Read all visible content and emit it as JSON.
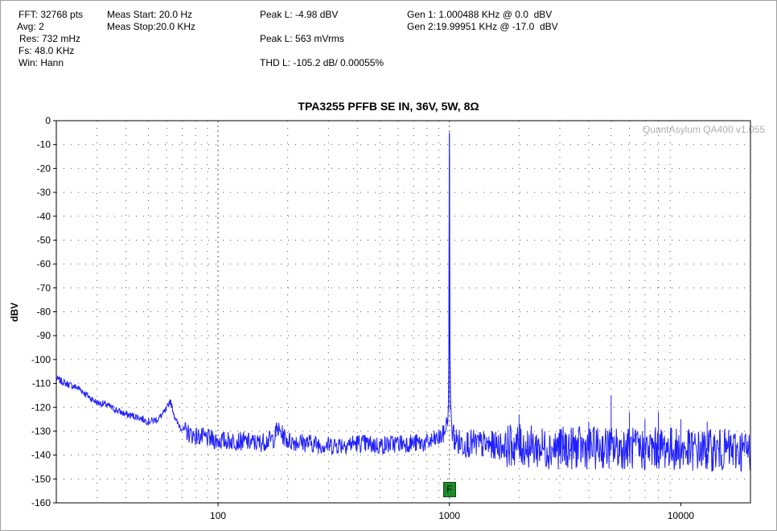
{
  "header": {
    "fft": "FFT: 32768 pts",
    "avg": "Avg: 2",
    "res": "Res: 732 mHz",
    "fs": "Fs: 48.0 KHz",
    "win": "Win: Hann",
    "meas_start": "Meas Start: 20.0 Hz",
    "meas_stop": "Meas Stop:20.0 KHz",
    "peak_l_dbv": "Peak L: -4.98 dBV",
    "peak_l_rms": "Peak L: 563 mVrms",
    "thd_l": "THD L: -105.2 dB/ 0.00055%",
    "gen1": "Gen 1: 1.000488 KHz @ 0.0  dBV",
    "gen2": "Gen 2:19.99951 KHz @ -17.0  dBV"
  },
  "watermark": "QuantAsylum QA400 v1.055",
  "marker": {
    "label": "F",
    "freq": 1000,
    "color": "#1d8a2a"
  },
  "chart_data": {
    "type": "line",
    "title": "TPA3255 PFFB SE IN, 36V, 5W, 8Ω",
    "xlabel": "",
    "ylabel": "dBV",
    "xscale": "log",
    "xlim": [
      20,
      20000
    ],
    "ylim": [
      -160,
      0
    ],
    "xticks": [
      100,
      1000,
      10000
    ],
    "xtick_labels": [
      "100",
      "1000",
      "10000"
    ],
    "yticks": [
      0,
      -10,
      -20,
      -30,
      -40,
      -50,
      -60,
      -70,
      -80,
      -90,
      -100,
      -110,
      -120,
      -130,
      -140,
      -150,
      -160
    ],
    "ytick_labels": [
      "0",
      "-10",
      "-20",
      "-30",
      "-40",
      "-50",
      "-60",
      "-70",
      "-80",
      "-90",
      "-100",
      "-110",
      "-120",
      "-130",
      "-140",
      "-150",
      "-160"
    ],
    "grid": true,
    "series": [
      {
        "color": "#2020ff",
        "x": [
          20,
          22,
          25,
          28,
          30,
          33,
          36,
          40,
          45,
          50,
          55,
          60,
          62,
          66,
          70,
          75,
          80,
          90,
          100,
          120,
          150,
          175,
          180,
          200,
          250,
          300,
          400,
          500,
          600,
          700,
          800,
          900,
          950,
          980,
          990,
          995,
          1000,
          1005,
          1010,
          1020,
          1050,
          1100,
          1200,
          1500,
          2000,
          2500,
          3000,
          4000,
          5000,
          6000,
          7000,
          8000,
          9000,
          10000,
          12000,
          14000,
          16000,
          18000,
          20000
        ],
        "y": [
          -108,
          -110,
          -112,
          -116,
          -118,
          -119,
          -121,
          -123,
          -124,
          -126,
          -125,
          -121,
          -117,
          -126,
          -129,
          -131,
          -132,
          -133,
          -134,
          -134,
          -135,
          -133,
          -129,
          -134,
          -135,
          -136,
          -135,
          -136,
          -135,
          -135,
          -135,
          -133,
          -131,
          -125,
          -121,
          -100,
          -5,
          -100,
          -121,
          -128,
          -133,
          -135,
          -135,
          -136,
          -136,
          -137,
          -137,
          -137,
          -137,
          -137,
          -138,
          -137,
          -137,
          -138,
          -138,
          -138,
          -138,
          -138,
          -138
        ]
      }
    ],
    "spurs": [
      {
        "x": 2000,
        "y": -123
      },
      {
        "x": 3000,
        "y": -129
      },
      {
        "x": 4000,
        "y": -126
      },
      {
        "x": 5000,
        "y": -115
      },
      {
        "x": 6000,
        "y": -122
      },
      {
        "x": 7000,
        "y": -125
      },
      {
        "x": 8000,
        "y": -122
      },
      {
        "x": 10000,
        "y": -125
      },
      {
        "x": 13000,
        "y": -126
      },
      {
        "x": 20000,
        "y": -121
      }
    ]
  }
}
